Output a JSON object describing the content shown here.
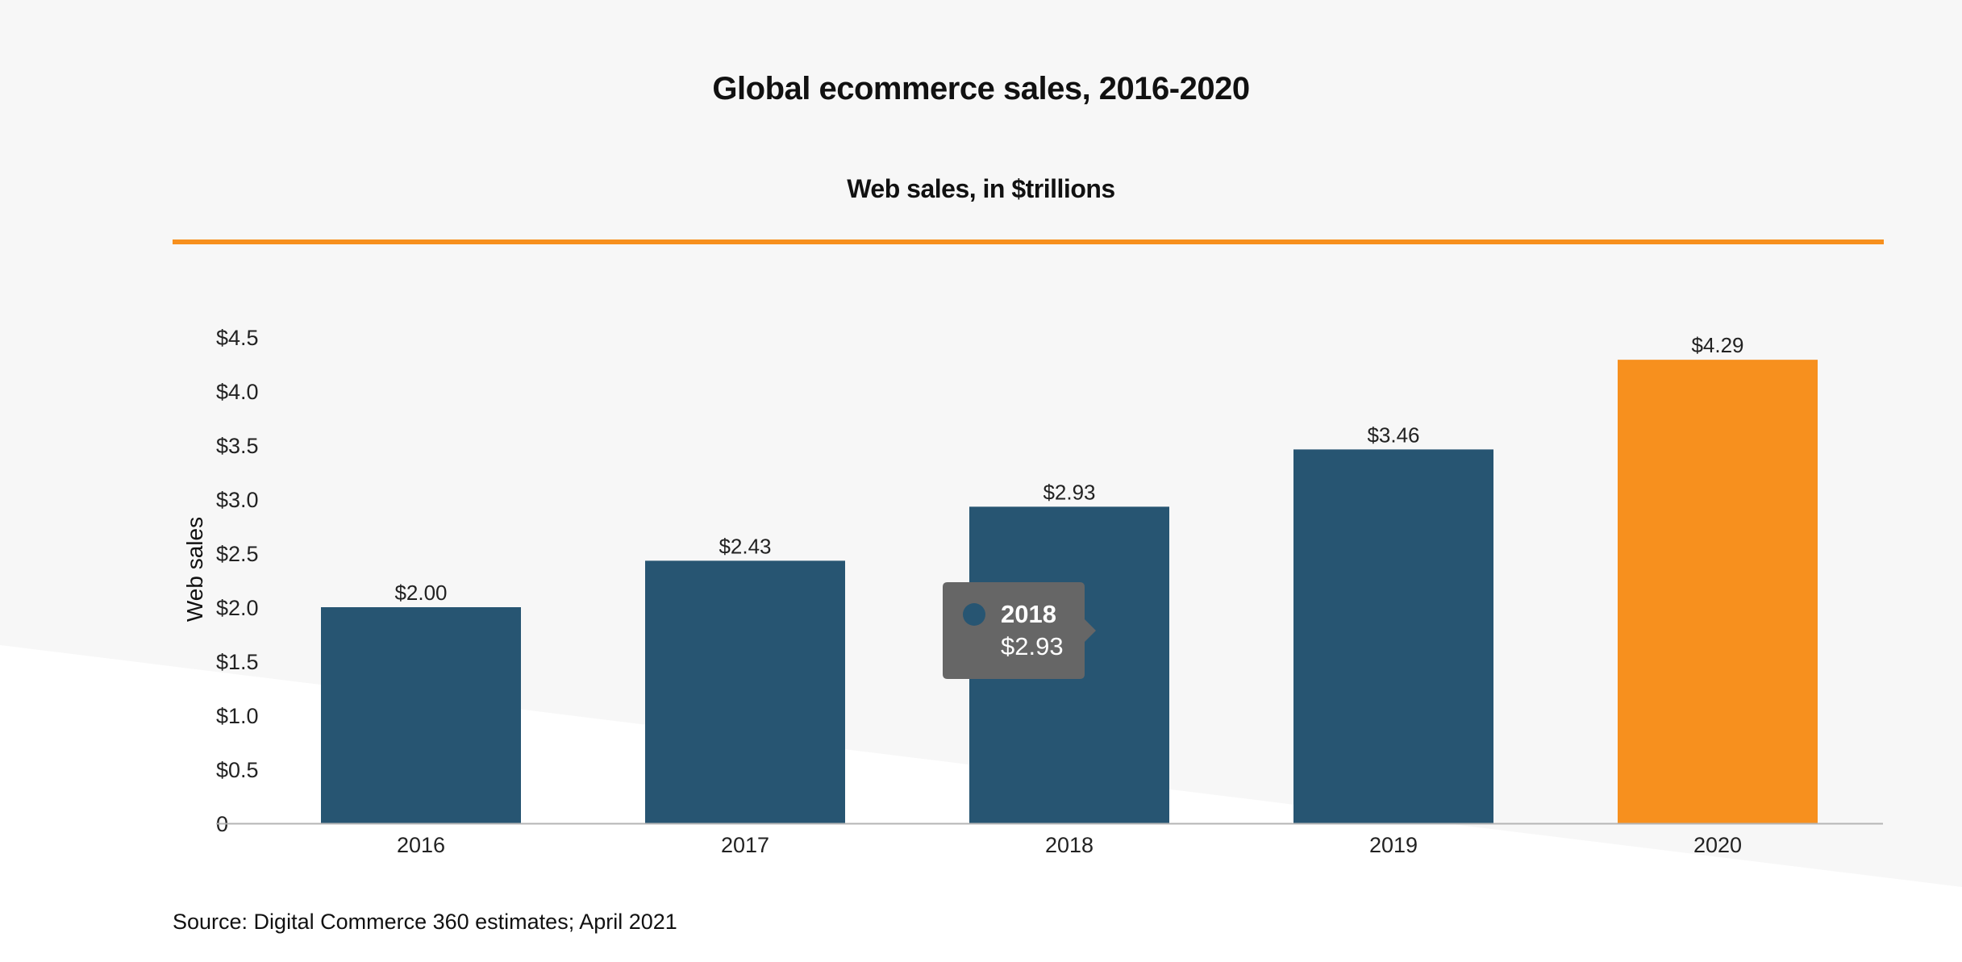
{
  "title": "Global ecommerce sales, 2016-2020",
  "subtitle": "Web sales, in $trillions",
  "source": "Source: Digital Commerce 360 estimates; April 2021",
  "colors": {
    "bar": "#275572",
    "highlight": "#f7901e",
    "tooltip_bg": "#666666"
  },
  "tooltip": {
    "title": "2018",
    "value": "$2.93"
  },
  "chart_data": {
    "type": "bar",
    "categories": [
      "2016",
      "2017",
      "2018",
      "2019",
      "2020"
    ],
    "values": [
      2.0,
      2.43,
      2.93,
      3.46,
      4.29
    ],
    "data_labels": [
      "$2.00",
      "$2.43",
      "$2.93",
      "$3.46",
      "$4.29"
    ],
    "highlight_category": "2020",
    "ylabel": "Web sales",
    "ylim": [
      0,
      4.5
    ],
    "yticks": [
      0,
      0.5,
      1.0,
      1.5,
      2.0,
      2.5,
      3.0,
      3.5,
      4.0,
      4.5
    ],
    "ytick_labels": [
      "0",
      "$0.5",
      "$1.0",
      "$1.5",
      "$2.0",
      "$2.5",
      "$3.0",
      "$3.5",
      "$4.0",
      "$4.5"
    ],
    "grid": false,
    "legend": "none"
  }
}
